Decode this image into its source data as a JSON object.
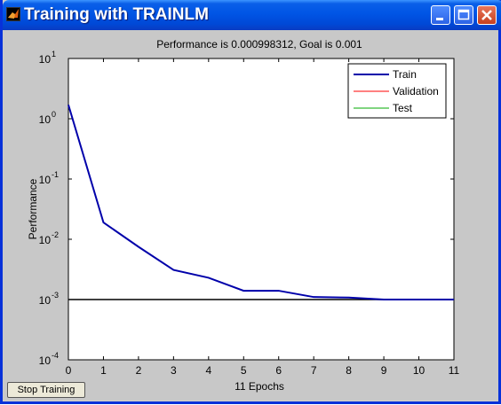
{
  "window": {
    "title": "Training with TRAINLM"
  },
  "stop_button_label": "Stop Training",
  "chart_data": {
    "type": "line",
    "title": "Performance is 0.000998312, Goal is 0.001",
    "xlabel": "11 Epochs",
    "ylabel": "Performance",
    "x_scale": "linear",
    "y_scale": "log",
    "xlim": [
      0,
      11
    ],
    "ylim": [
      0.0001,
      10
    ],
    "x_ticks": [
      "0",
      "1",
      "2",
      "3",
      "4",
      "5",
      "6",
      "7",
      "8",
      "9",
      "10",
      "11"
    ],
    "y_ticks": [
      {
        "base": "10",
        "exp": "1",
        "value": 10
      },
      {
        "base": "10",
        "exp": "0",
        "value": 1
      },
      {
        "base": "10",
        "exp": "-1",
        "value": 0.1
      },
      {
        "base": "10",
        "exp": "-2",
        "value": 0.01
      },
      {
        "base": "10",
        "exp": "-3",
        "value": 0.001
      },
      {
        "base": "10",
        "exp": "-4",
        "value": 0.0001
      }
    ],
    "legend_position": "top-right",
    "series": [
      {
        "name": "Train",
        "color": "#0000aa",
        "x": [
          0,
          1,
          2,
          3,
          4,
          5,
          6,
          7,
          8,
          9,
          10,
          11
        ],
        "values": [
          1.7,
          0.019,
          0.0075,
          0.0031,
          0.0023,
          0.0014,
          0.0014,
          0.0011,
          0.00108,
          0.001,
          0.000999,
          0.000998312
        ]
      },
      {
        "name": "Validation",
        "color": "#ff0000",
        "x": [],
        "values": []
      },
      {
        "name": "Test",
        "color": "#00aa00",
        "x": [],
        "values": []
      }
    ],
    "goal": {
      "value": 0.001,
      "color": "#000000"
    }
  }
}
